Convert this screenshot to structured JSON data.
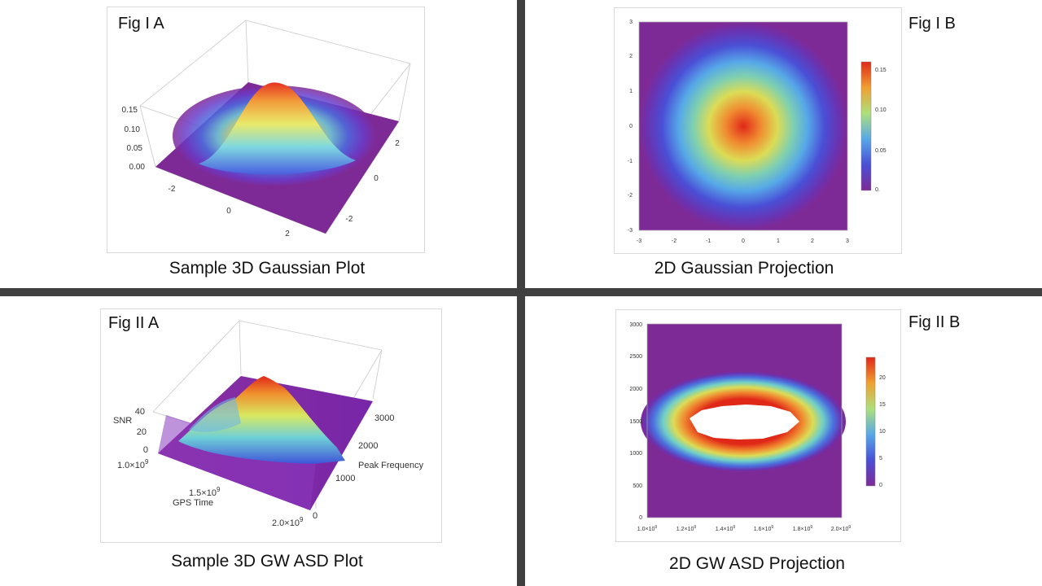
{
  "figures": {
    "fig1a": {
      "label": "Fig I A",
      "caption": "Sample 3D Gaussian Plot"
    },
    "fig1b": {
      "label": "Fig I B",
      "caption": "2D Gaussian Projection"
    },
    "fig2a": {
      "label": "Fig II A",
      "caption": "Sample 3D GW ASD Plot"
    },
    "fig2b": {
      "label": "Fig II B",
      "caption": "2D GW ASD Projection"
    }
  },
  "colors": {
    "divider": "#404040",
    "base_purple": "#7e2a96",
    "peak_red": "#e53220",
    "hole": "#ffffff"
  },
  "chart_data": [
    {
      "id": "fig1a",
      "type": "surface3d",
      "function": "2D Gaussian",
      "x_ticks": [
        "-2",
        "0",
        "2"
      ],
      "y_ticks": [
        "-2",
        "0",
        "2"
      ],
      "z_ticks": [
        "0.00",
        "0.05",
        "0.10",
        "0.15"
      ],
      "zlim": [
        0,
        0.16
      ],
      "peak": {
        "x": 0,
        "y": 0,
        "z": 0.16
      }
    },
    {
      "id": "fig1b",
      "type": "heatmap",
      "x_ticks": [
        "-3",
        "-2",
        "-1",
        "0",
        "1",
        "2",
        "3"
      ],
      "y_ticks": [
        "3",
        "2",
        "1",
        "0",
        "-1",
        "-2",
        "-3"
      ],
      "xlim": [
        -3,
        3
      ],
      "ylim": [
        -3,
        3
      ],
      "colorbar_ticks": [
        "0.15",
        "0.10",
        "0.05",
        "0."
      ],
      "colorbar_range": [
        0,
        0.16
      ],
      "peak": {
        "x": 0,
        "y": 0,
        "value": 0.16
      }
    },
    {
      "id": "fig2a",
      "type": "surface3d",
      "z_label": "SNR",
      "x_label": "GPS Time",
      "y_label": "Peak Frequency",
      "z_ticks": [
        "40",
        "20",
        "0"
      ],
      "x_ticks": [
        {
          "base": "1.0×10",
          "exp": "9"
        },
        {
          "base": "1.5×10",
          "exp": "9"
        },
        {
          "base": "2.0×10",
          "exp": "9"
        }
      ],
      "y_ticks": [
        "3000",
        "2000",
        "1000",
        "0"
      ],
      "zlim": [
        0,
        45
      ]
    },
    {
      "id": "fig2b",
      "type": "heatmap",
      "y_ticks": [
        "3000",
        "2500",
        "2000",
        "1500",
        "1000",
        "500",
        "0"
      ],
      "x_ticks": [
        {
          "base": "1.0×10",
          "exp": "9"
        },
        {
          "base": "1.2×10",
          "exp": "9"
        },
        {
          "base": "1.4×10",
          "exp": "9"
        },
        {
          "base": "1.6×10",
          "exp": "9"
        },
        {
          "base": "1.8×10",
          "exp": "9"
        },
        {
          "base": "2.0×10",
          "exp": "9"
        }
      ],
      "xlim": [
        1000000000.0,
        2000000000.0
      ],
      "ylim": [
        0,
        3000
      ],
      "colorbar_ticks": [
        "20",
        "15",
        "10",
        "5",
        "0"
      ],
      "colorbar_range": [
        0,
        24
      ],
      "clipped_region": {
        "x_range": [
          1220000000.0,
          1830000000.0
        ],
        "y_range": [
          1150,
          1720
        ]
      }
    }
  ]
}
